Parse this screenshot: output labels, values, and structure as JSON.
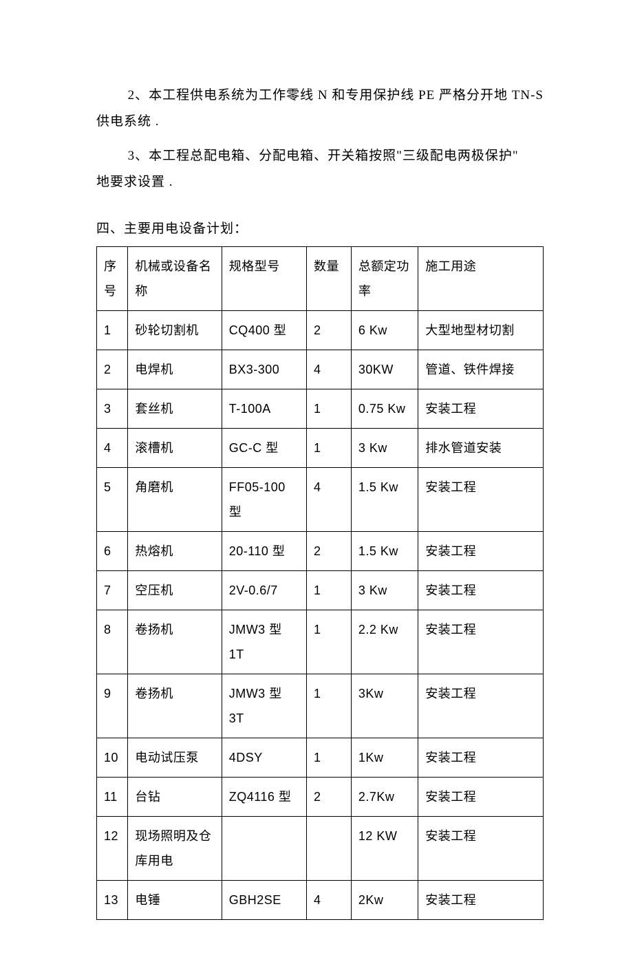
{
  "paragraphs": {
    "p2": "2、本工程供电系统为工作零线 N 和专用保护线 PE 严格分开地 TN-S 供电系统 .",
    "p3a": "3、本工程总配电箱、分配电箱、开关箱按照\"三级配电两极保护\"",
    "p3b": "地要求设置 .",
    "section4_title": "四、主要用电设备计划：",
    "text_color": "#000000",
    "background_color": "#ffffff",
    "body_fontsize": 19,
    "line_height": 2.0
  },
  "table": {
    "type": "table",
    "border_color": "#000000",
    "background_color": "#ffffff",
    "cell_fontsize": 18,
    "cell_line_height": 2.0,
    "column_widths_pct": [
      7,
      21,
      19,
      10,
      15,
      28
    ],
    "columns": [
      "序号",
      "机械或设备名称",
      "规格型号",
      "数量",
      "总额定功率",
      "施工用途"
    ],
    "rows": [
      [
        "1",
        "砂轮切割机",
        "CQ400 型",
        "2",
        "6 Kw",
        "大型地型材切割"
      ],
      [
        "2",
        "电焊机",
        "BX3-300",
        "4",
        "30KW",
        "管道、铁件焊接"
      ],
      [
        "3",
        "套丝机",
        "T-100A",
        "1",
        "0.75 Kw",
        "安装工程"
      ],
      [
        "4",
        "滚槽机",
        "GC-C 型",
        "1",
        "3 Kw",
        "排水管道安装"
      ],
      [
        "5",
        "角磨机",
        "FF05-100 型",
        "4",
        "1.5 Kw",
        "安装工程"
      ],
      [
        "6",
        "热熔机",
        "20-110 型",
        "2",
        "1.5 Kw",
        "安装工程"
      ],
      [
        "7",
        "空压机",
        "2V-0.6/7",
        "1",
        "3 Kw",
        "安装工程"
      ],
      [
        "8",
        "卷扬机",
        "JMW3 型 1T",
        "1",
        "2.2 Kw",
        "安装工程"
      ],
      [
        "9",
        "卷扬机",
        "JMW3 型 3T",
        "1",
        "3Kw",
        "安装工程"
      ],
      [
        "10",
        "电动试压泵",
        "4DSY",
        "1",
        "1Kw",
        "安装工程"
      ],
      [
        "11",
        "台钻",
        "ZQ4116 型",
        "2",
        "2.7Kw",
        "安装工程"
      ],
      [
        "12",
        "现场照明及仓库用电",
        "",
        "",
        "12 KW",
        "安装工程"
      ],
      [
        "13",
        "电锤",
        "GBH2SE",
        "4",
        "2Kw",
        "安装工程"
      ]
    ]
  }
}
